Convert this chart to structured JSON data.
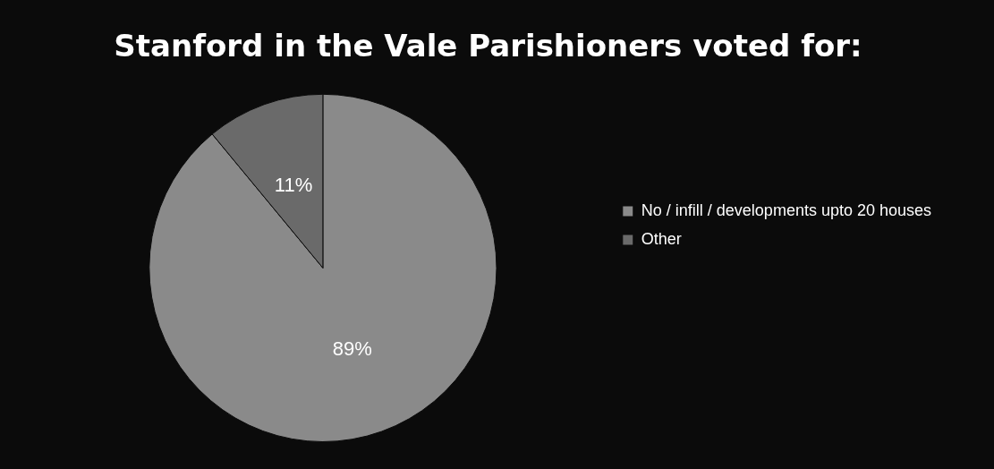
{
  "chart_data": {
    "type": "pie",
    "title": "Stanford in the Vale Parishioners voted for:",
    "categories": [
      "No / infill / developments upto 20 houses",
      "Other"
    ],
    "values": [
      89,
      11
    ],
    "colors": [
      "#8a8a8a",
      "#6a6a6a"
    ],
    "value_labels": [
      "89%",
      "11%"
    ],
    "legend": "right"
  }
}
